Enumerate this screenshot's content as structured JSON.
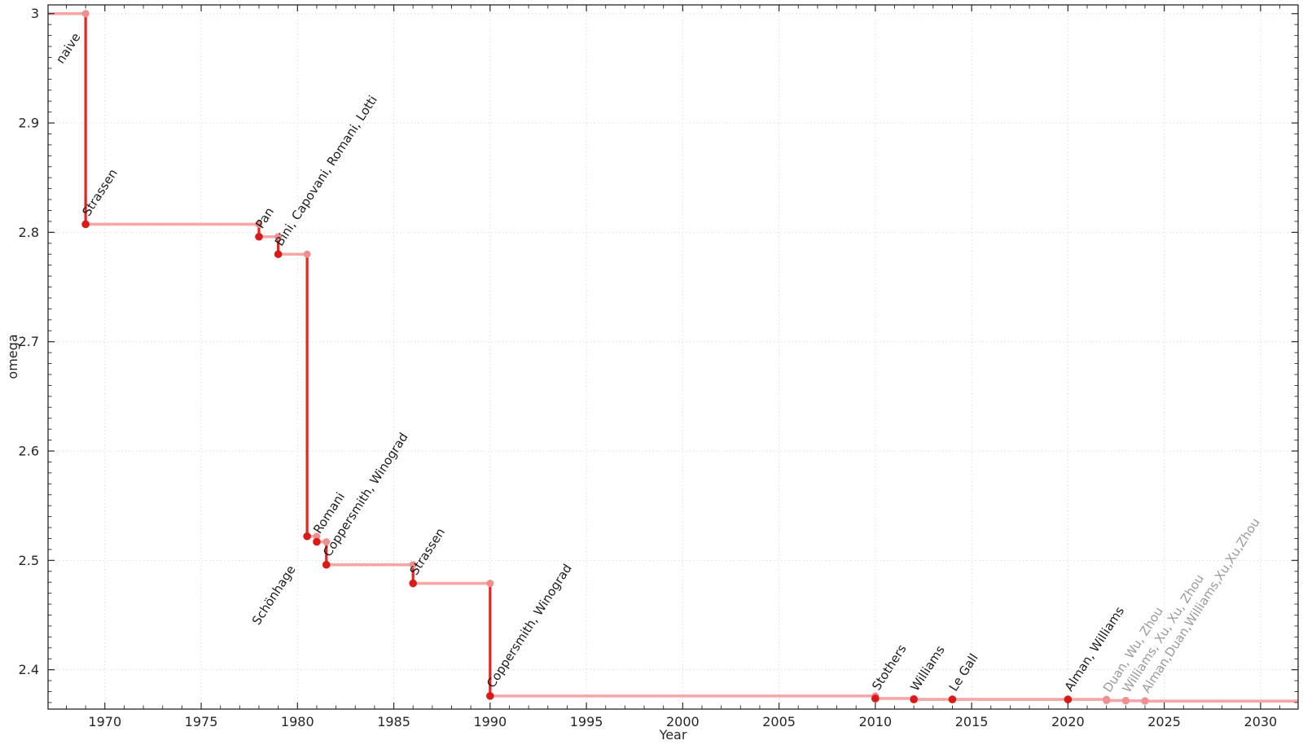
{
  "chart_data": {
    "type": "line",
    "subtype": "step-post",
    "title": "",
    "xlabel": "Year",
    "ylabel": "omega",
    "xlim": [
      1967.05,
      2031.95
    ],
    "ylim": [
      2.364,
      3.008
    ],
    "x_major_ticks": [
      1970,
      1975,
      1980,
      1985,
      1990,
      1995,
      2000,
      2005,
      2010,
      2015,
      2020,
      2025,
      2030
    ],
    "x_minor_tick_step": 1,
    "y_major_ticks": [
      {
        "value": 3.0,
        "label": "3"
      },
      {
        "value": 2.9,
        "label": "2.9"
      },
      {
        "value": 2.8,
        "label": "2.8"
      },
      {
        "value": 2.7,
        "label": "2.7"
      },
      {
        "value": 2.6,
        "label": "2.6"
      },
      {
        "value": 2.5,
        "label": "2.5"
      },
      {
        "value": 2.4,
        "label": "2.4"
      }
    ],
    "y_minor_tick_step": 0.01,
    "grid": {
      "show": true,
      "style": "dotted",
      "on_major_ticks_only": true
    },
    "start_omega": 3.0,
    "legend": "none",
    "style": {
      "step_vertical_color": "#e8231e",
      "step_horizontal_color": "#f5a6a5",
      "solid_marker_color": "#d91a16",
      "light_marker_color": "#f08f8f",
      "annotation_color": "#1c1c1c",
      "annotation_muted_color": "#9a9a9a",
      "grid_color": "#dedede",
      "frame_color": "#262626",
      "tick_label_color": "#262626"
    },
    "points": [
      {
        "label": "naive",
        "year": 1969,
        "omega": 3.0,
        "marker": "light",
        "label_muted": false,
        "label_side": "below",
        "label_offset": [
          -6,
          28
        ]
      },
      {
        "label": "Strassen",
        "year": 1969,
        "omega": 2.8074,
        "marker": "solid",
        "label_muted": false,
        "label_side": "above"
      },
      {
        "label": "Pan",
        "year": 1978,
        "omega": 2.796,
        "marker": "solid",
        "label_muted": false,
        "label_side": "above"
      },
      {
        "label": "Bini, Capovani, Romani, Lotti",
        "year": 1979,
        "omega": 2.78,
        "marker": "solid",
        "label_muted": false,
        "label_side": "above"
      },
      {
        "label": "Schönhage",
        "year": 1980.5,
        "omega": 2.522,
        "marker": "solid",
        "label_muted": false,
        "label_side": "below",
        "label_offset": [
          -14,
          40
        ]
      },
      {
        "label": "Romani",
        "year": 1981,
        "omega": 2.517,
        "marker": "solid",
        "label_muted": false,
        "label_side": "above"
      },
      {
        "label": "Coppersmith, Winograd",
        "year": 1981.5,
        "omega": 2.496,
        "marker": "solid",
        "label_muted": false,
        "label_side": "above"
      },
      {
        "label": "Strassen",
        "year": 1986,
        "omega": 2.479,
        "marker": "solid",
        "label_muted": false,
        "label_side": "above"
      },
      {
        "label": "Coppersmith, Winograd",
        "year": 1990,
        "omega": 2.376,
        "marker": "solid",
        "label_muted": false,
        "label_side": "above"
      },
      {
        "label": "Stothers",
        "year": 2010,
        "omega": 2.3737,
        "marker": "solid",
        "label_muted": false,
        "label_side": "above"
      },
      {
        "label": "Williams",
        "year": 2012,
        "omega": 2.3729,
        "marker": "solid",
        "label_muted": false,
        "label_side": "above"
      },
      {
        "label": "Le Gall",
        "year": 2014,
        "omega": 2.3728639,
        "marker": "solid",
        "label_muted": false,
        "label_side": "above"
      },
      {
        "label": "Alman, Williams",
        "year": 2020,
        "omega": 2.3728596,
        "marker": "solid",
        "label_muted": false,
        "label_side": "above"
      },
      {
        "label": "Duan, Wu, Zhou",
        "year": 2022,
        "omega": 2.371866,
        "marker": "light",
        "label_muted": true,
        "label_side": "above"
      },
      {
        "label": "Williams, Xu, Xu, Zhou",
        "year": 2023,
        "omega": 2.371552,
        "marker": "light",
        "label_muted": true,
        "label_side": "above"
      },
      {
        "label": "Alman,Duan,Williams,Xu,Xu,Zhou",
        "year": 2024,
        "omega": 2.371339,
        "marker": "light",
        "label_muted": true,
        "label_side": "above"
      }
    ]
  }
}
